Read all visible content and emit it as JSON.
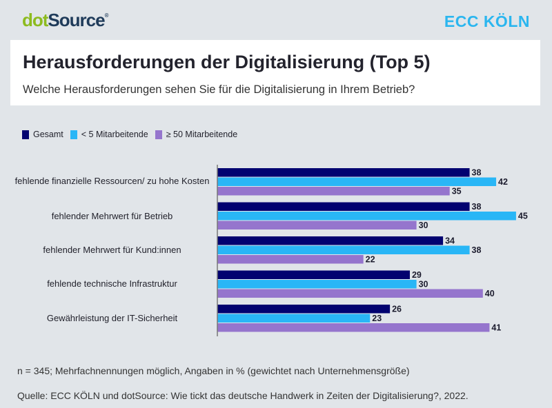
{
  "logos": {
    "left": "dotSource",
    "right": "ECC KÖLN"
  },
  "header": {
    "title": "Herausforderungen der Digitalisierung (Top 5)",
    "subtitle": "Welche Herausforderungen sehen Sie für die Digitalisierung in Ihrem Betrieb?"
  },
  "chart_data": {
    "type": "bar",
    "orientation": "horizontal",
    "categories": [
      "fehlende finanzielle Ressourcen/ zu hohe Kosten",
      "fehlender Mehrwert für Betrieb",
      "fehlender Mehrwert für Kund:innen",
      "fehlende technische Infrastruktur",
      "Gewährleistung der IT-Sicherheit"
    ],
    "series": [
      {
        "name": "Gesamt",
        "color": "#020270",
        "values": [
          38,
          38,
          34,
          29,
          26
        ]
      },
      {
        "name": "< 5 Mitarbeitende",
        "color": "#29b6f6",
        "values": [
          42,
          45,
          38,
          30,
          23
        ]
      },
      {
        "name": "≥ 50 Mitarbeitende",
        "color": "#9575cd",
        "values": [
          35,
          30,
          22,
          40,
          41
        ]
      }
    ],
    "unit": "%",
    "grid": false,
    "legend": "top-left",
    "data_labels": true
  },
  "footer": {
    "note": "n = 345; Mehrfachnennungen möglich, Angaben in % (gewichtet nach Unternehmensgröße)",
    "source": "Quelle: ECC KÖLN und dotSource: Wie tickt das deutsche Handwerk in Zeiten der Digitalisierung?, 2022."
  }
}
